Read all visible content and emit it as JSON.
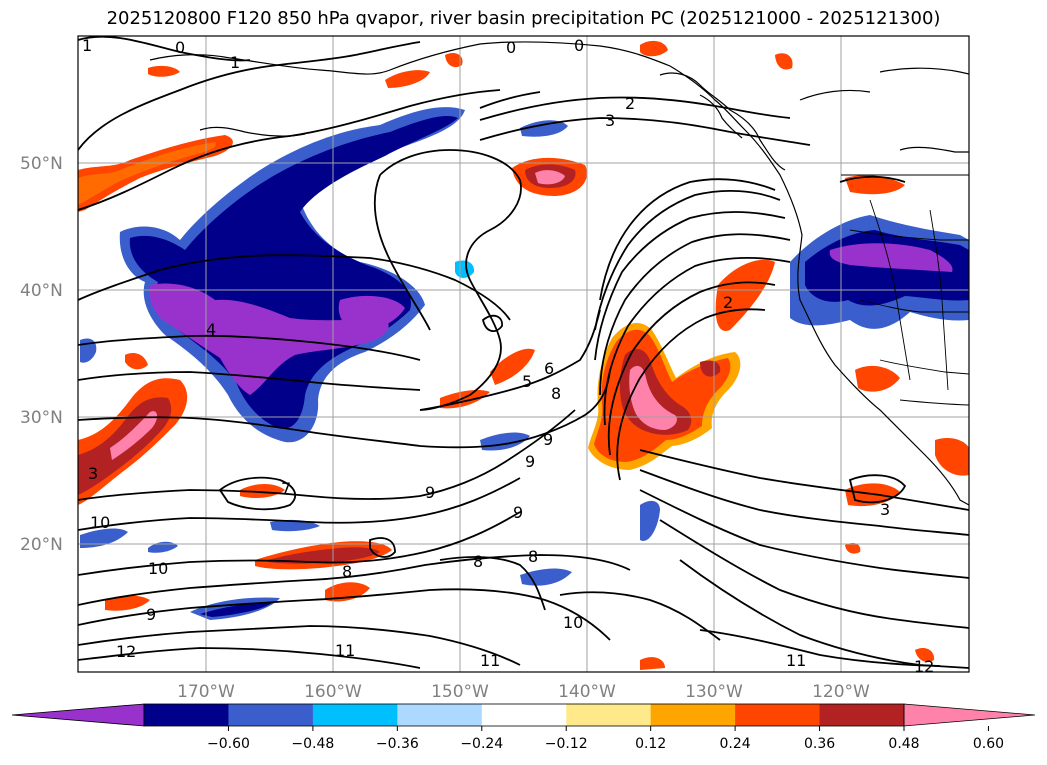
{
  "title": "2025120800 F120 850 hPa qvapor, river basin precipitation PC (2025121000 - 2025121300)",
  "lat_labels": [
    "50°N",
    "40°N",
    "30°N",
    "20°N"
  ],
  "lon_labels": [
    "170°W",
    "160°W",
    "150°W",
    "140°W",
    "130°W",
    "120°W"
  ],
  "colorbar": {
    "colors": [
      "#9932cc",
      "#00008b",
      "#3a5fcd",
      "#00bfff",
      "#add8ff",
      "#ffffff",
      "#ffe98a",
      "#ffa500",
      "#ff4500",
      "#b22222",
      "#ff82ab"
    ],
    "tick_labels": [
      "−0.60",
      "−0.48",
      "−0.36",
      "−0.24",
      "−0.12",
      "0.12",
      "0.24",
      "0.36",
      "0.48",
      "0.60"
    ]
  },
  "contour_labels": [
    "0",
    "1",
    "0",
    "0",
    "2",
    "3",
    "4",
    "5",
    "6",
    "8",
    "9",
    "9",
    "9",
    "9",
    "7",
    "8",
    "8",
    "8",
    "10",
    "10",
    "9",
    "12",
    "11",
    "11",
    "10",
    "11",
    "12",
    "3",
    "2",
    "3",
    "1"
  ]
}
